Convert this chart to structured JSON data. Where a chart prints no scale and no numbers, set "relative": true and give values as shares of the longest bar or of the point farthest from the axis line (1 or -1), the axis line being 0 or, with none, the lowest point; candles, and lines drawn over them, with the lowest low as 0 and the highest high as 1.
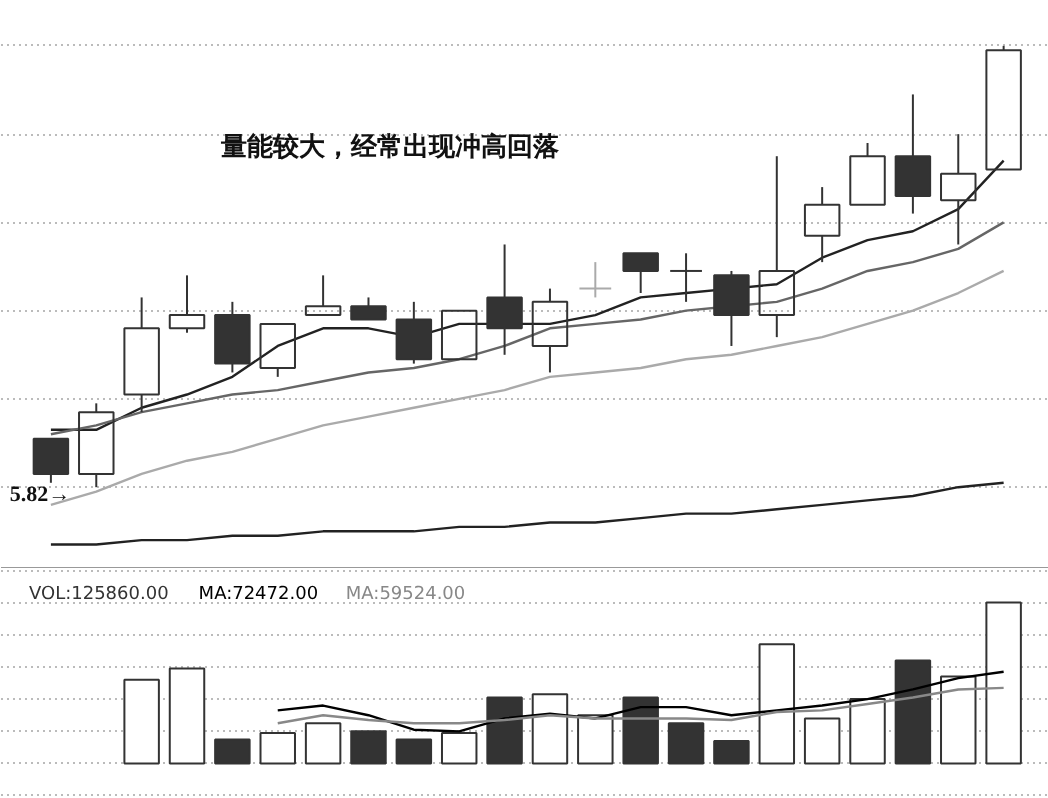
{
  "chart_data": [
    {
      "type": "candlestick",
      "relative": true,
      "grid": "y",
      "tick_labels": false,
      "categories": [
        null,
        null,
        null,
        null,
        null,
        null,
        null,
        null,
        null,
        null,
        null,
        null,
        null,
        null,
        null,
        null,
        null,
        null,
        null,
        null,
        null,
        null
      ],
      "ohlc": [
        [
          0.11,
          0.11,
          0.01,
          0.03
        ],
        [
          0.03,
          0.19,
          0,
          0.17
        ],
        [
          0.21,
          0.43,
          0.17,
          0.36
        ],
        [
          0.36,
          0.48,
          0.35,
          0.39
        ],
        [
          0.39,
          0.42,
          0.26,
          0.28
        ],
        [
          0.27,
          0.37,
          0.25,
          0.37
        ],
        [
          0.39,
          0.48,
          0.39,
          0.41
        ],
        [
          0.41,
          0.43,
          0.38,
          0.38
        ],
        [
          0.38,
          0.42,
          0.28,
          0.29
        ],
        [
          0.29,
          0.4,
          0.29,
          0.4
        ],
        [
          0.43,
          0.55,
          0.3,
          0.36
        ],
        [
          0.32,
          0.45,
          0.26,
          0.42
        ],
        [
          0.45,
          0.51,
          0.43,
          0.45
        ],
        [
          0.53,
          0.53,
          0.44,
          0.49
        ],
        [
          0.49,
          0.53,
          0.42,
          0.49
        ],
        [
          0.48,
          0.49,
          0.32,
          0.39
        ],
        [
          0.39,
          0.75,
          0.34,
          0.49
        ],
        [
          0.57,
          0.68,
          0.51,
          0.64
        ],
        [
          0.64,
          0.78,
          0.64,
          0.75
        ],
        [
          0.75,
          0.89,
          0.62,
          0.66
        ],
        [
          0.65,
          0.8,
          0.55,
          0.71
        ],
        [
          0.72,
          1,
          0.72,
          0.99
        ]
      ],
      "colors": [
        "#333333",
        "#333333",
        "#333333",
        "#333333",
        "#333333",
        "#333333",
        "#333333",
        "#333333",
        "#333333",
        "#333333",
        "#333333",
        "#333333",
        "#aaaaaa",
        "#333333",
        "#333333",
        "#333333",
        "#333333",
        "#333333",
        "#333333",
        "#333333",
        "#333333",
        "#333333"
      ],
      "series": [
        {
          "type": "line",
          "color": "#222222",
          "values": [
            0.13,
            0.13,
            0.18,
            0.21,
            0.25,
            0.32,
            0.36,
            0.36,
            0.34,
            0.37,
            0.37,
            0.37,
            0.39,
            0.43,
            0.44,
            0.45,
            0.46,
            0.52,
            0.56,
            0.58,
            0.63,
            0.74
          ]
        },
        {
          "type": "line",
          "color": "#666666",
          "values": [
            0.12,
            0.14,
            0.17,
            0.19,
            0.21,
            0.22,
            0.24,
            0.26,
            0.27,
            0.29,
            0.32,
            0.36,
            0.37,
            0.38,
            0.4,
            0.41,
            0.42,
            0.45,
            0.49,
            0.51,
            0.54,
            0.6
          ]
        },
        {
          "type": "line",
          "color": "#aaaaaa",
          "values": [
            -0.04,
            -0.01,
            0.03,
            0.06,
            0.08,
            0.11,
            0.14,
            0.16,
            0.18,
            0.2,
            0.22,
            0.25,
            0.26,
            0.27,
            0.29,
            0.3,
            0.32,
            0.34,
            0.37,
            0.4,
            0.44,
            0.49
          ]
        },
        {
          "type": "line",
          "color": "#222222",
          "values": [
            -0.13,
            -0.13,
            -0.12,
            -0.12,
            -0.11,
            -0.11,
            -0.1,
            -0.1,
            -0.1,
            -0.09,
            -0.09,
            -0.08,
            -0.08,
            -0.07,
            -0.06,
            -0.06,
            -0.05,
            -0.04,
            -0.03,
            -0.02,
            0.0,
            0.01
          ]
        }
      ],
      "annotations": [
        "量能较大，经常出现冲高回落",
        "5.82→"
      ]
    },
    {
      "type": "bar",
      "relative": true,
      "grid": "y",
      "tick_labels": false,
      "legend": "top left",
      "categories": [
        null,
        null,
        null,
        null,
        null,
        null,
        null,
        null,
        null,
        null,
        null,
        null,
        null,
        null,
        null,
        null,
        null,
        null,
        null,
        null,
        null,
        null
      ],
      "series": [
        {
          "name": "VOL:125860.00",
          "color": "#333333",
          "colors": [
            "#ffffff",
            "#ffffff",
            "#ffffff",
            "#ffffff",
            "#333333",
            "#ffffff",
            "#ffffff",
            "#333333",
            "#333333",
            "#ffffff",
            "#333333",
            "#ffffff",
            "#ffffff",
            "#333333",
            "#333333",
            "#333333",
            "#ffffff",
            "#ffffff",
            "#ffffff",
            "#333333",
            "#ffffff",
            "#ffffff"
          ],
          "values": [
            null,
            null,
            0.52,
            0.59,
            0.15,
            0.19,
            0.25,
            0.2,
            0.15,
            0.19,
            0.41,
            0.43,
            0.3,
            0.41,
            0.25,
            0.14,
            0.74,
            0.28,
            0.4,
            0.64,
            0.54,
            1
          ]
        },
        {
          "name": "MA:72472.00",
          "type": "line",
          "color": "#000000",
          "values": [
            null,
            null,
            null,
            null,
            null,
            0.33,
            0.36,
            0.3,
            0.21,
            0.2,
            0.28,
            0.31,
            0.28,
            0.35,
            0.35,
            0.3,
            0.33,
            0.36,
            0.4,
            0.46,
            0.53,
            0.57
          ]
        },
        {
          "name": "MA:59524.00",
          "type": "line",
          "color": "#888888",
          "values": [
            null,
            null,
            null,
            null,
            null,
            0.25,
            0.3,
            0.27,
            0.25,
            0.25,
            0.27,
            0.3,
            0.28,
            0.28,
            0.28,
            0.27,
            0.32,
            0.33,
            0.37,
            0.41,
            0.46,
            0.47
          ]
        }
      ]
    }
  ]
}
